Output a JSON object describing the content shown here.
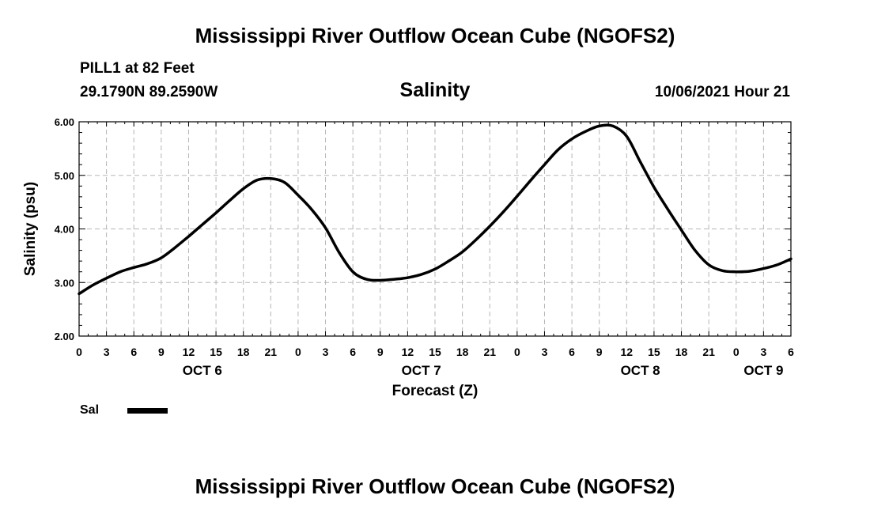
{
  "header": {
    "title": "Mississippi River Outflow Ocean Cube (NGOFS2)",
    "station": "PILL1 at 82 Feet",
    "coords": "29.1790N  89.2590W",
    "variable": "Salinity",
    "timestamp": "10/06/2021 Hour 21"
  },
  "footer": {
    "title": "Mississippi River Outflow Ocean Cube (NGOFS2)"
  },
  "legend": {
    "label": "Sal",
    "color": "#000000"
  },
  "chart_data": {
    "type": "line",
    "title": "Salinity",
    "xlabel": "Forecast (Z)",
    "ylabel": "Salinity (psu)",
    "xlim": [
      0,
      78
    ],
    "ylim": [
      2.0,
      6.0
    ],
    "grid": true,
    "yticks": [
      "2.00",
      "3.00",
      "4.00",
      "5.00",
      "6.00"
    ],
    "xticks": [
      "0",
      "3",
      "6",
      "9",
      "12",
      "15",
      "18",
      "21",
      "0",
      "3",
      "6",
      "9",
      "12",
      "15",
      "18",
      "21",
      "0",
      "3",
      "6",
      "9",
      "12",
      "15",
      "18",
      "21",
      "0",
      "3",
      "6"
    ],
    "days": [
      {
        "label": "OCT 6",
        "hour": 13.5
      },
      {
        "label": "OCT 7",
        "hour": 37.5
      },
      {
        "label": "OCT 8",
        "hour": 61.5
      },
      {
        "label": "OCT 9",
        "hour": 75
      }
    ],
    "series": [
      {
        "name": "Sal",
        "x": [
          0,
          1.5,
          3,
          4.5,
          6,
          7.5,
          9,
          10.5,
          12,
          13.5,
          15,
          16.5,
          18,
          19.5,
          21,
          22.5,
          24,
          25.5,
          27,
          28.5,
          30,
          31.5,
          33,
          34.5,
          36,
          37.5,
          39,
          40.5,
          42,
          43.5,
          45,
          46.5,
          48,
          49.5,
          51,
          52.5,
          54,
          55.5,
          57,
          58.5,
          60,
          61.5,
          63,
          64.5,
          66,
          67.5,
          69,
          70.5,
          72,
          73.5,
          75,
          76.5,
          78
        ],
        "values": [
          2.79,
          2.95,
          3.08,
          3.2,
          3.28,
          3.35,
          3.46,
          3.65,
          3.86,
          4.08,
          4.3,
          4.53,
          4.75,
          4.91,
          4.94,
          4.87,
          4.63,
          4.36,
          4.02,
          3.56,
          3.2,
          3.06,
          3.04,
          3.06,
          3.09,
          3.15,
          3.25,
          3.4,
          3.57,
          3.8,
          4.05,
          4.32,
          4.61,
          4.91,
          5.2,
          5.48,
          5.68,
          5.82,
          5.92,
          5.92,
          5.73,
          5.25,
          4.78,
          4.37,
          3.98,
          3.6,
          3.33,
          3.22,
          3.2,
          3.21,
          3.26,
          3.33,
          3.44
        ]
      }
    ]
  }
}
